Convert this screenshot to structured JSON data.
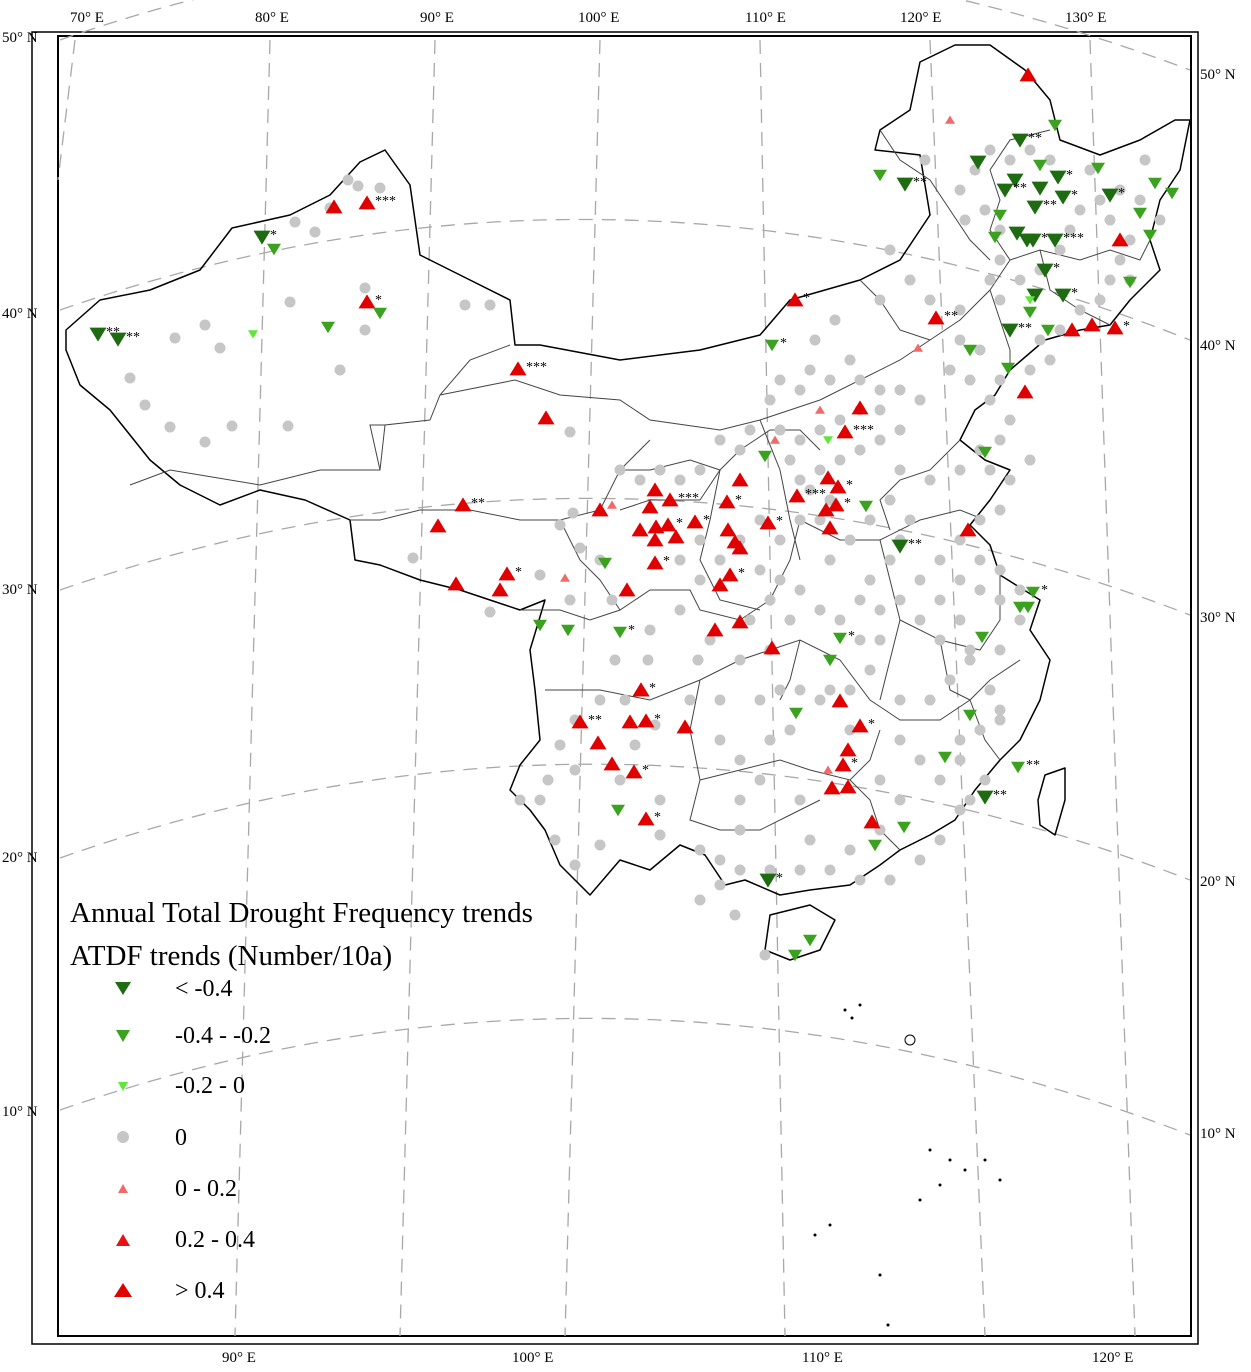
{
  "legend": {
    "title_line1": "Annual Total Drought Frequency trends",
    "title_line2": "ATDF trends (Number/10a)",
    "classes": [
      {
        "label": "< -0.4",
        "symbol": "triangle-down",
        "color": "#1f6b12",
        "size": "large"
      },
      {
        "label": "-0.4 - -0.2",
        "symbol": "triangle-down",
        "color": "#3aa21e",
        "size": "medium"
      },
      {
        "label": "-0.2 - 0",
        "symbol": "triangle-down",
        "color": "#5ee63a",
        "size": "small"
      },
      {
        "label": "0",
        "symbol": "circle",
        "color": "#c6c6c6",
        "size": "medium"
      },
      {
        "label": "0 - 0.2",
        "symbol": "triangle-up",
        "color": "#f06a6a",
        "size": "small"
      },
      {
        "label": "0.2 - 0.4",
        "symbol": "triangle-up",
        "color": "#e81010",
        "size": "medium"
      },
      {
        "label": "> 0.4",
        "symbol": "triangle-up",
        "color": "#e00000",
        "size": "large"
      }
    ]
  },
  "graticule": {
    "top_lon": [
      "70° E",
      "80° E",
      "90° E",
      "100° E",
      "110° E",
      "120° E",
      "130° E"
    ],
    "bottom_lon": [
      "90° E",
      "100° E",
      "110° E",
      "120° E"
    ],
    "left_lat": [
      "50° N",
      "40° N",
      "30° N",
      "20° N",
      "10° N"
    ],
    "right_lat": [
      "50° N",
      "40° N",
      "30° N",
      "20° N",
      "10° N"
    ]
  },
  "significance": {
    "one": "*",
    "two": "**",
    "three": "***"
  },
  "colors": {
    "border": "#000000",
    "province_line": "#444444",
    "graticule": "#a8a8a8"
  }
}
